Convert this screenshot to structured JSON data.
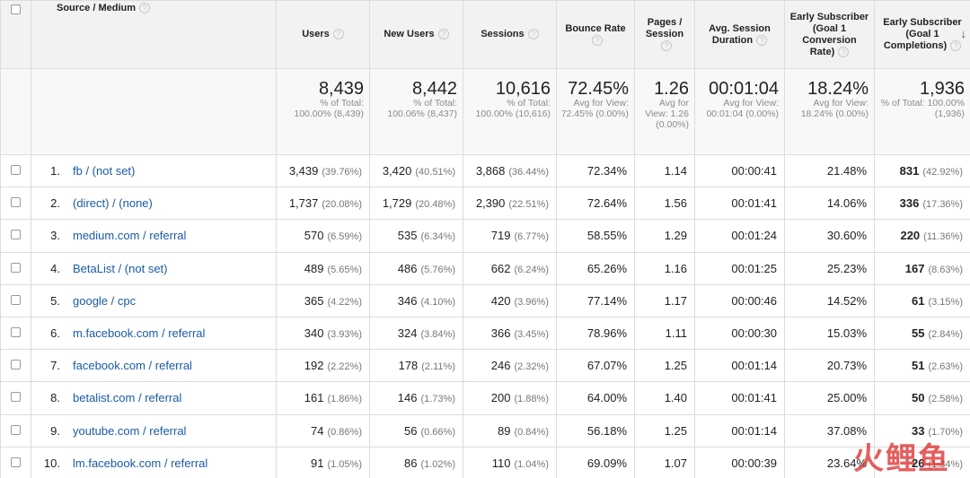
{
  "header": {
    "source_medium": "Source / Medium",
    "users": "Users",
    "new_users": "New Users",
    "sessions": "Sessions",
    "bounce_rate": "Bounce Rate",
    "pages_session": "Pages / Session",
    "avg_session_duration": "Avg. Session Duration",
    "goal_conv_rate": "Early Subscriber (Goal 1 Conversion Rate)",
    "goal_completions": "Early Subscriber (Goal 1 Completions)",
    "help_glyph": "?",
    "sort_glyph": "↓"
  },
  "totals": {
    "users": {
      "value": "8,439",
      "sub": "% of Total: 100.00% (8,439)"
    },
    "new_users": {
      "value": "8,442",
      "sub": "% of Total: 100.06% (8,437)"
    },
    "sessions": {
      "value": "10,616",
      "sub": "% of Total: 100.00% (10,616)"
    },
    "bounce_rate": {
      "value": "72.45%",
      "sub": "Avg for View: 72.45% (0.00%)"
    },
    "pages_session": {
      "value": "1.26",
      "sub": "Avg for View: 1.26 (0.00%)"
    },
    "avg_session_duration": {
      "value": "00:01:04",
      "sub": "Avg for View: 00:01:04 (0.00%)"
    },
    "goal_conv_rate": {
      "value": "18.24%",
      "sub": "Avg for View: 18.24% (0.00%)"
    },
    "goal_completions": {
      "value": "1,936",
      "sub": "% of Total: 100.00% (1,936)"
    }
  },
  "rows": [
    {
      "idx": "1.",
      "source": "fb / (not set)",
      "users": "3,439",
      "users_pct": "(39.76%)",
      "new_users": "3,420",
      "new_users_pct": "(40.51%)",
      "sessions": "3,868",
      "sessions_pct": "(36.44%)",
      "bounce": "72.34%",
      "pages": "1.14",
      "duration": "00:00:41",
      "conv_rate": "21.48%",
      "completions": "831",
      "completions_pct": "(42.92%)"
    },
    {
      "idx": "2.",
      "source": "(direct) / (none)",
      "users": "1,737",
      "users_pct": "(20.08%)",
      "new_users": "1,729",
      "new_users_pct": "(20.48%)",
      "sessions": "2,390",
      "sessions_pct": "(22.51%)",
      "bounce": "72.64%",
      "pages": "1.56",
      "duration": "00:01:41",
      "conv_rate": "14.06%",
      "completions": "336",
      "completions_pct": "(17.36%)"
    },
    {
      "idx": "3.",
      "source": "medium.com / referral",
      "users": "570",
      "users_pct": "(6.59%)",
      "new_users": "535",
      "new_users_pct": "(6.34%)",
      "sessions": "719",
      "sessions_pct": "(6.77%)",
      "bounce": "58.55%",
      "pages": "1.29",
      "duration": "00:01:24",
      "conv_rate": "30.60%",
      "completions": "220",
      "completions_pct": "(11.36%)"
    },
    {
      "idx": "4.",
      "source": "BetaList / (not set)",
      "users": "489",
      "users_pct": "(5.65%)",
      "new_users": "486",
      "new_users_pct": "(5.76%)",
      "sessions": "662",
      "sessions_pct": "(6.24%)",
      "bounce": "65.26%",
      "pages": "1.16",
      "duration": "00:01:25",
      "conv_rate": "25.23%",
      "completions": "167",
      "completions_pct": "(8.63%)"
    },
    {
      "idx": "5.",
      "source": "google / cpc",
      "users": "365",
      "users_pct": "(4.22%)",
      "new_users": "346",
      "new_users_pct": "(4.10%)",
      "sessions": "420",
      "sessions_pct": "(3.96%)",
      "bounce": "77.14%",
      "pages": "1.17",
      "duration": "00:00:46",
      "conv_rate": "14.52%",
      "completions": "61",
      "completions_pct": "(3.15%)"
    },
    {
      "idx": "6.",
      "source": "m.facebook.com / referral",
      "users": "340",
      "users_pct": "(3.93%)",
      "new_users": "324",
      "new_users_pct": "(3.84%)",
      "sessions": "366",
      "sessions_pct": "(3.45%)",
      "bounce": "78.96%",
      "pages": "1.11",
      "duration": "00:00:30",
      "conv_rate": "15.03%",
      "completions": "55",
      "completions_pct": "(2.84%)"
    },
    {
      "idx": "7.",
      "source": "facebook.com / referral",
      "users": "192",
      "users_pct": "(2.22%)",
      "new_users": "178",
      "new_users_pct": "(2.11%)",
      "sessions": "246",
      "sessions_pct": "(2.32%)",
      "bounce": "67.07%",
      "pages": "1.25",
      "duration": "00:01:14",
      "conv_rate": "20.73%",
      "completions": "51",
      "completions_pct": "(2.63%)"
    },
    {
      "idx": "8.",
      "source": "betalist.com / referral",
      "users": "161",
      "users_pct": "(1.86%)",
      "new_users": "146",
      "new_users_pct": "(1.73%)",
      "sessions": "200",
      "sessions_pct": "(1.88%)",
      "bounce": "64.00%",
      "pages": "1.40",
      "duration": "00:01:41",
      "conv_rate": "25.00%",
      "completions": "50",
      "completions_pct": "(2.58%)"
    },
    {
      "idx": "9.",
      "source": "youtube.com / referral",
      "users": "74",
      "users_pct": "(0.86%)",
      "new_users": "56",
      "new_users_pct": "(0.66%)",
      "sessions": "89",
      "sessions_pct": "(0.84%)",
      "bounce": "56.18%",
      "pages": "1.25",
      "duration": "00:01:14",
      "conv_rate": "37.08%",
      "completions": "33",
      "completions_pct": "(1.70%)"
    },
    {
      "idx": "10.",
      "source": "lm.facebook.com / referral",
      "users": "91",
      "users_pct": "(1.05%)",
      "new_users": "86",
      "new_users_pct": "(1.02%)",
      "sessions": "110",
      "sessions_pct": "(1.04%)",
      "bounce": "69.09%",
      "pages": "1.07",
      "duration": "00:00:39",
      "conv_rate": "23.64%",
      "completions": "26",
      "completions_pct": "(1.34%)"
    }
  ],
  "watermark": "火鲤鱼"
}
